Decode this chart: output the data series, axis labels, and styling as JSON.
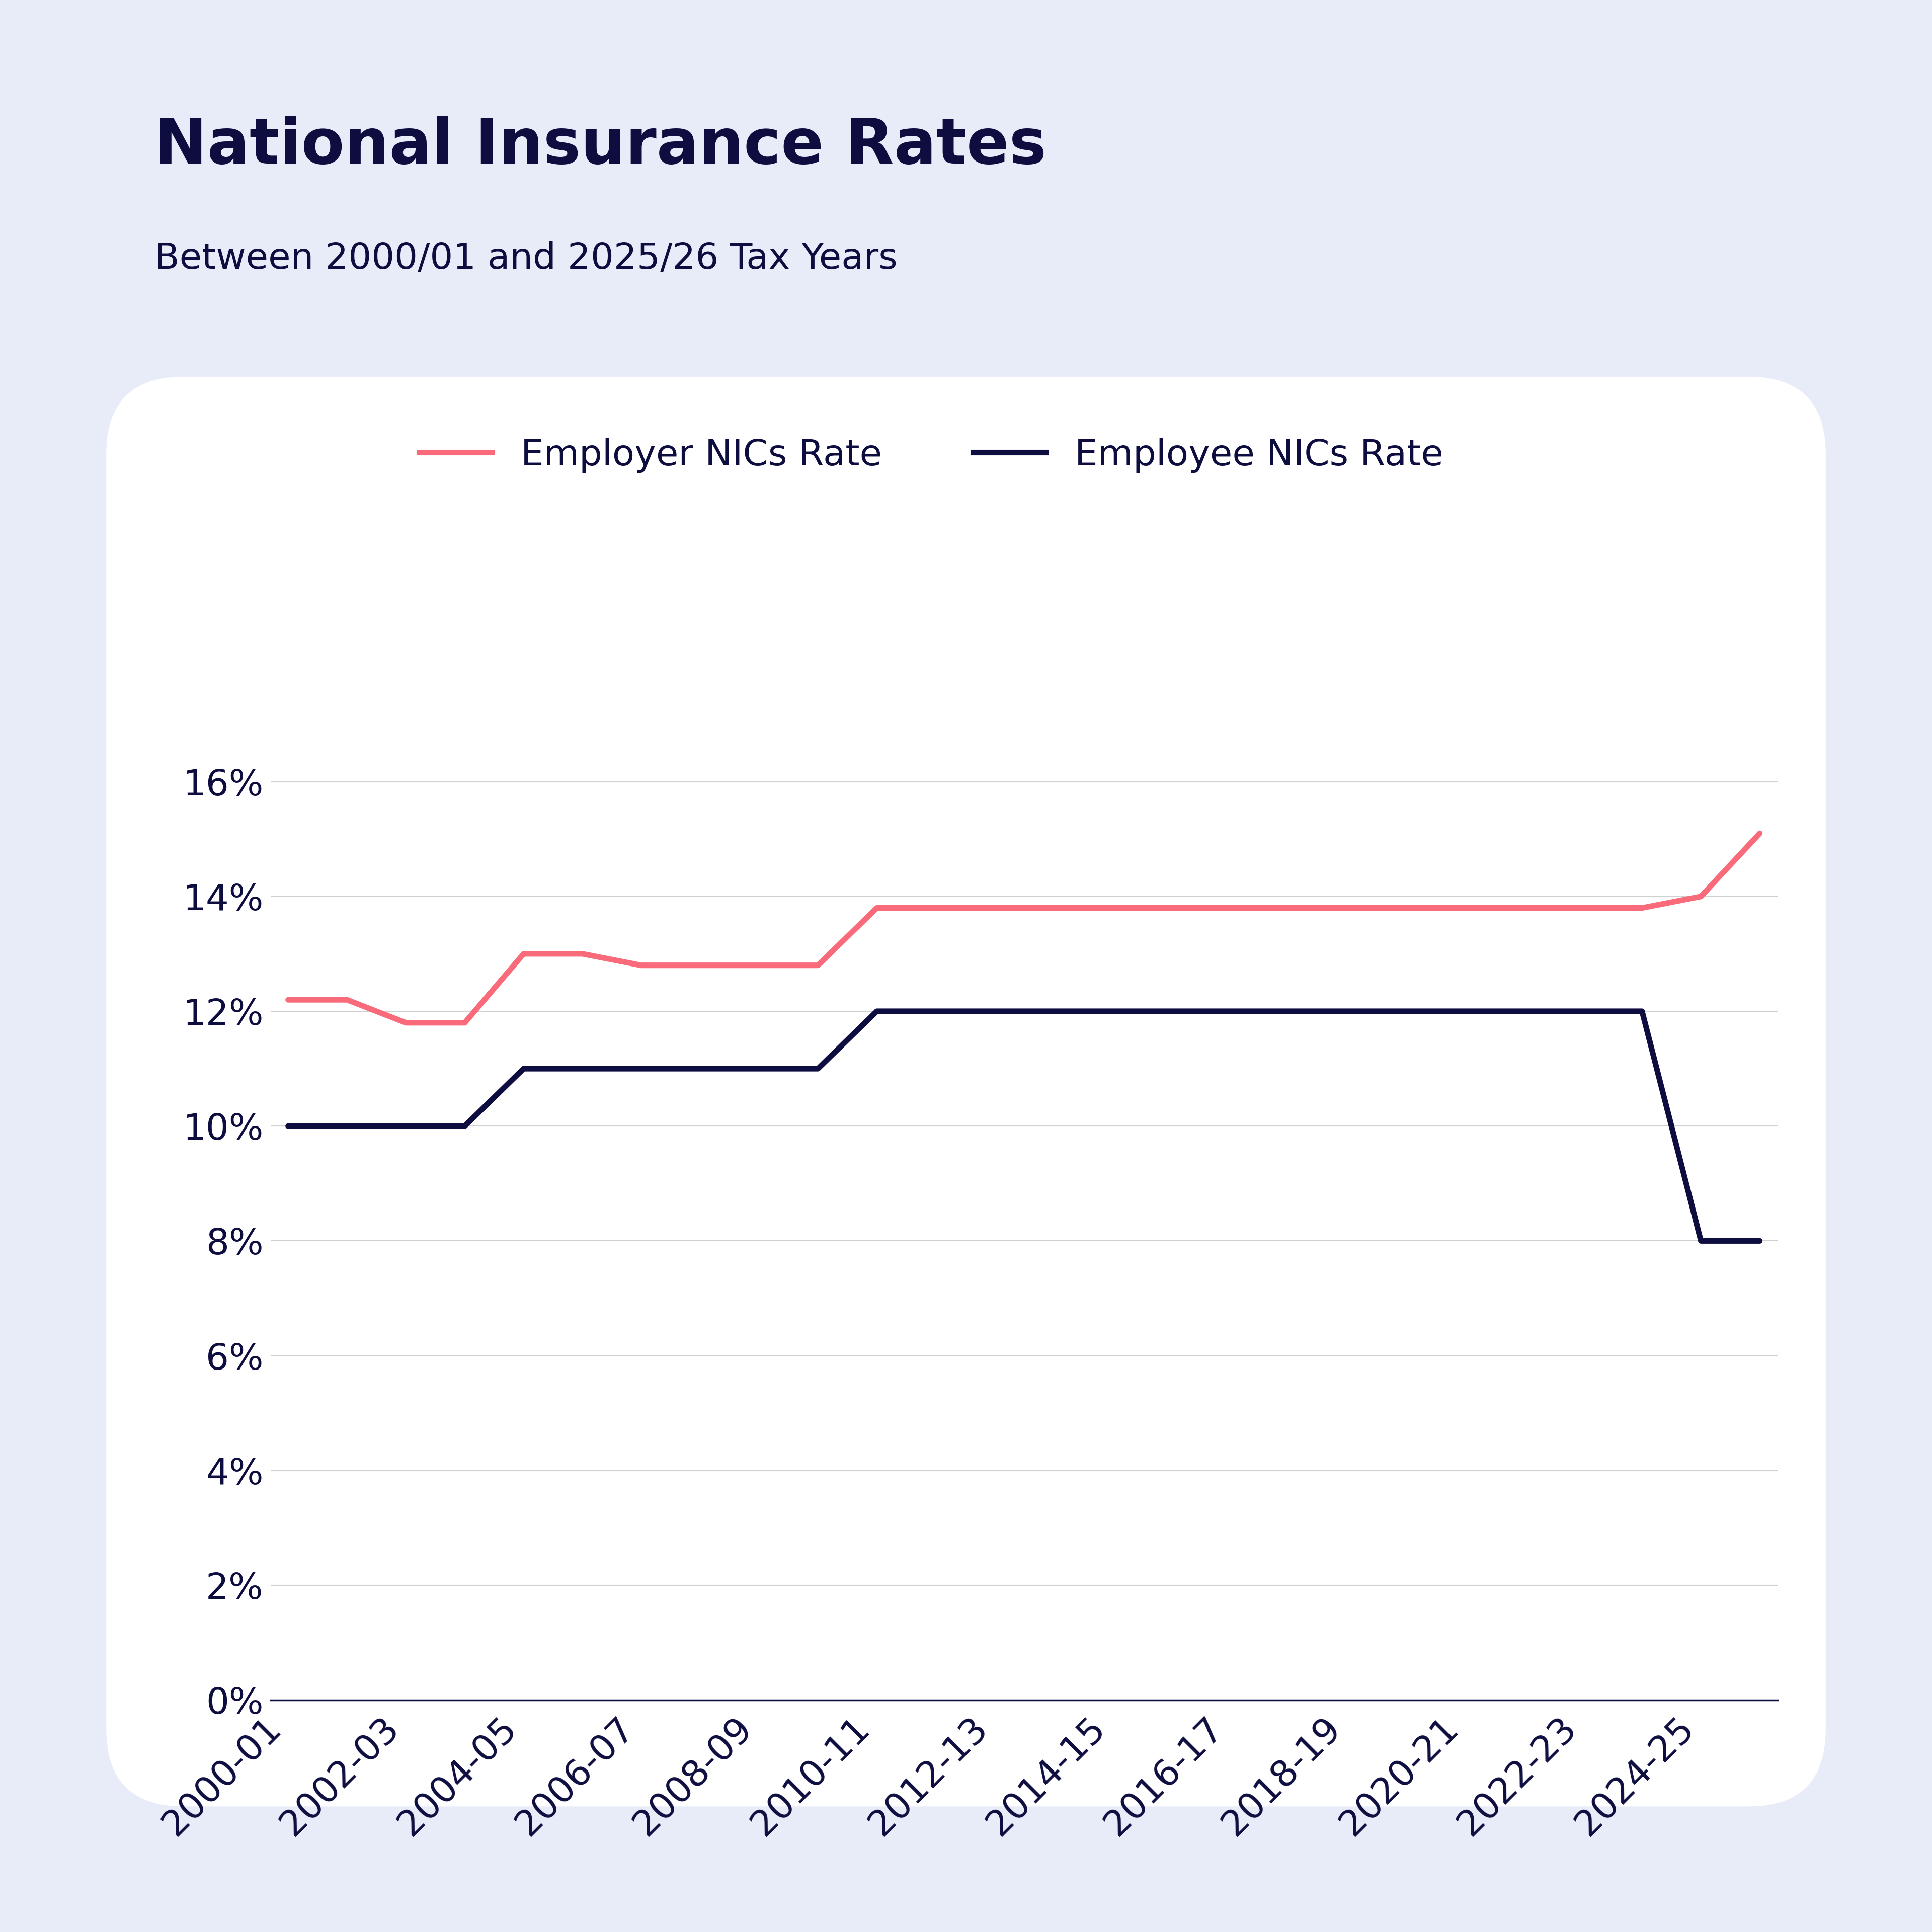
{
  "title": "National Insurance Rates",
  "subtitle": "Between 2000/01 and 2025/26 Tax Years",
  "background_color": "#e8ecf8",
  "chart_bg_color": "#ffffff",
  "title_color": "#0d0d40",
  "subtitle_color": "#0d0d40",
  "tick_color": "#0d0d40",
  "x_labels": [
    "2000-01",
    "2002-03",
    "2004-05",
    "2006-07",
    "2008-09",
    "2010-11",
    "2012-13",
    "2014-15",
    "2016-17",
    "2018-19",
    "2020-21",
    "2022-23",
    "2024-25"
  ],
  "x_values": [
    0,
    2,
    4,
    6,
    8,
    10,
    12,
    14,
    16,
    18,
    20,
    22,
    24
  ],
  "employer_nics": {
    "label": "Employer NICs Rate",
    "color": "#f96b7a",
    "line_width": 8,
    "x": [
      0,
      1,
      2,
      3,
      4,
      5,
      6,
      7,
      8,
      9,
      10,
      11,
      12,
      13,
      14,
      15,
      16,
      17,
      18,
      19,
      20,
      21,
      22,
      23,
      24,
      25
    ],
    "y": [
      12.2,
      12.2,
      11.8,
      11.8,
      13.0,
      13.0,
      12.8,
      12.8,
      12.8,
      12.8,
      13.8,
      13.8,
      13.8,
      13.8,
      13.8,
      13.8,
      13.8,
      13.8,
      13.8,
      13.8,
      13.8,
      13.8,
      13.8,
      13.8,
      14.0,
      15.1
    ]
  },
  "employee_nics": {
    "label": "Employee NICs Rate",
    "color": "#0d0d40",
    "line_width": 8,
    "x": [
      0,
      1,
      2,
      3,
      4,
      5,
      6,
      7,
      8,
      9,
      10,
      11,
      12,
      13,
      14,
      15,
      16,
      17,
      18,
      19,
      20,
      21,
      22,
      23,
      24,
      25
    ],
    "y": [
      10.0,
      10.0,
      10.0,
      10.0,
      11.0,
      11.0,
      11.0,
      11.0,
      11.0,
      11.0,
      12.0,
      12.0,
      12.0,
      12.0,
      12.0,
      12.0,
      12.0,
      12.0,
      12.0,
      12.0,
      12.0,
      12.0,
      12.0,
      12.0,
      8.0,
      8.0
    ]
  },
  "ylim": [
    0,
    17.5
  ],
  "yticks": [
    0,
    2,
    4,
    6,
    8,
    10,
    12,
    14,
    16
  ],
  "ytick_labels": [
    "0%",
    "2%",
    "4%",
    "6%",
    "8%",
    "10%",
    "12%",
    "14%",
    "16%"
  ],
  "grid_color": "#d0d0d0",
  "title_fontsize": 90,
  "subtitle_fontsize": 52,
  "tick_fontsize": 52,
  "legend_fontsize": 52
}
